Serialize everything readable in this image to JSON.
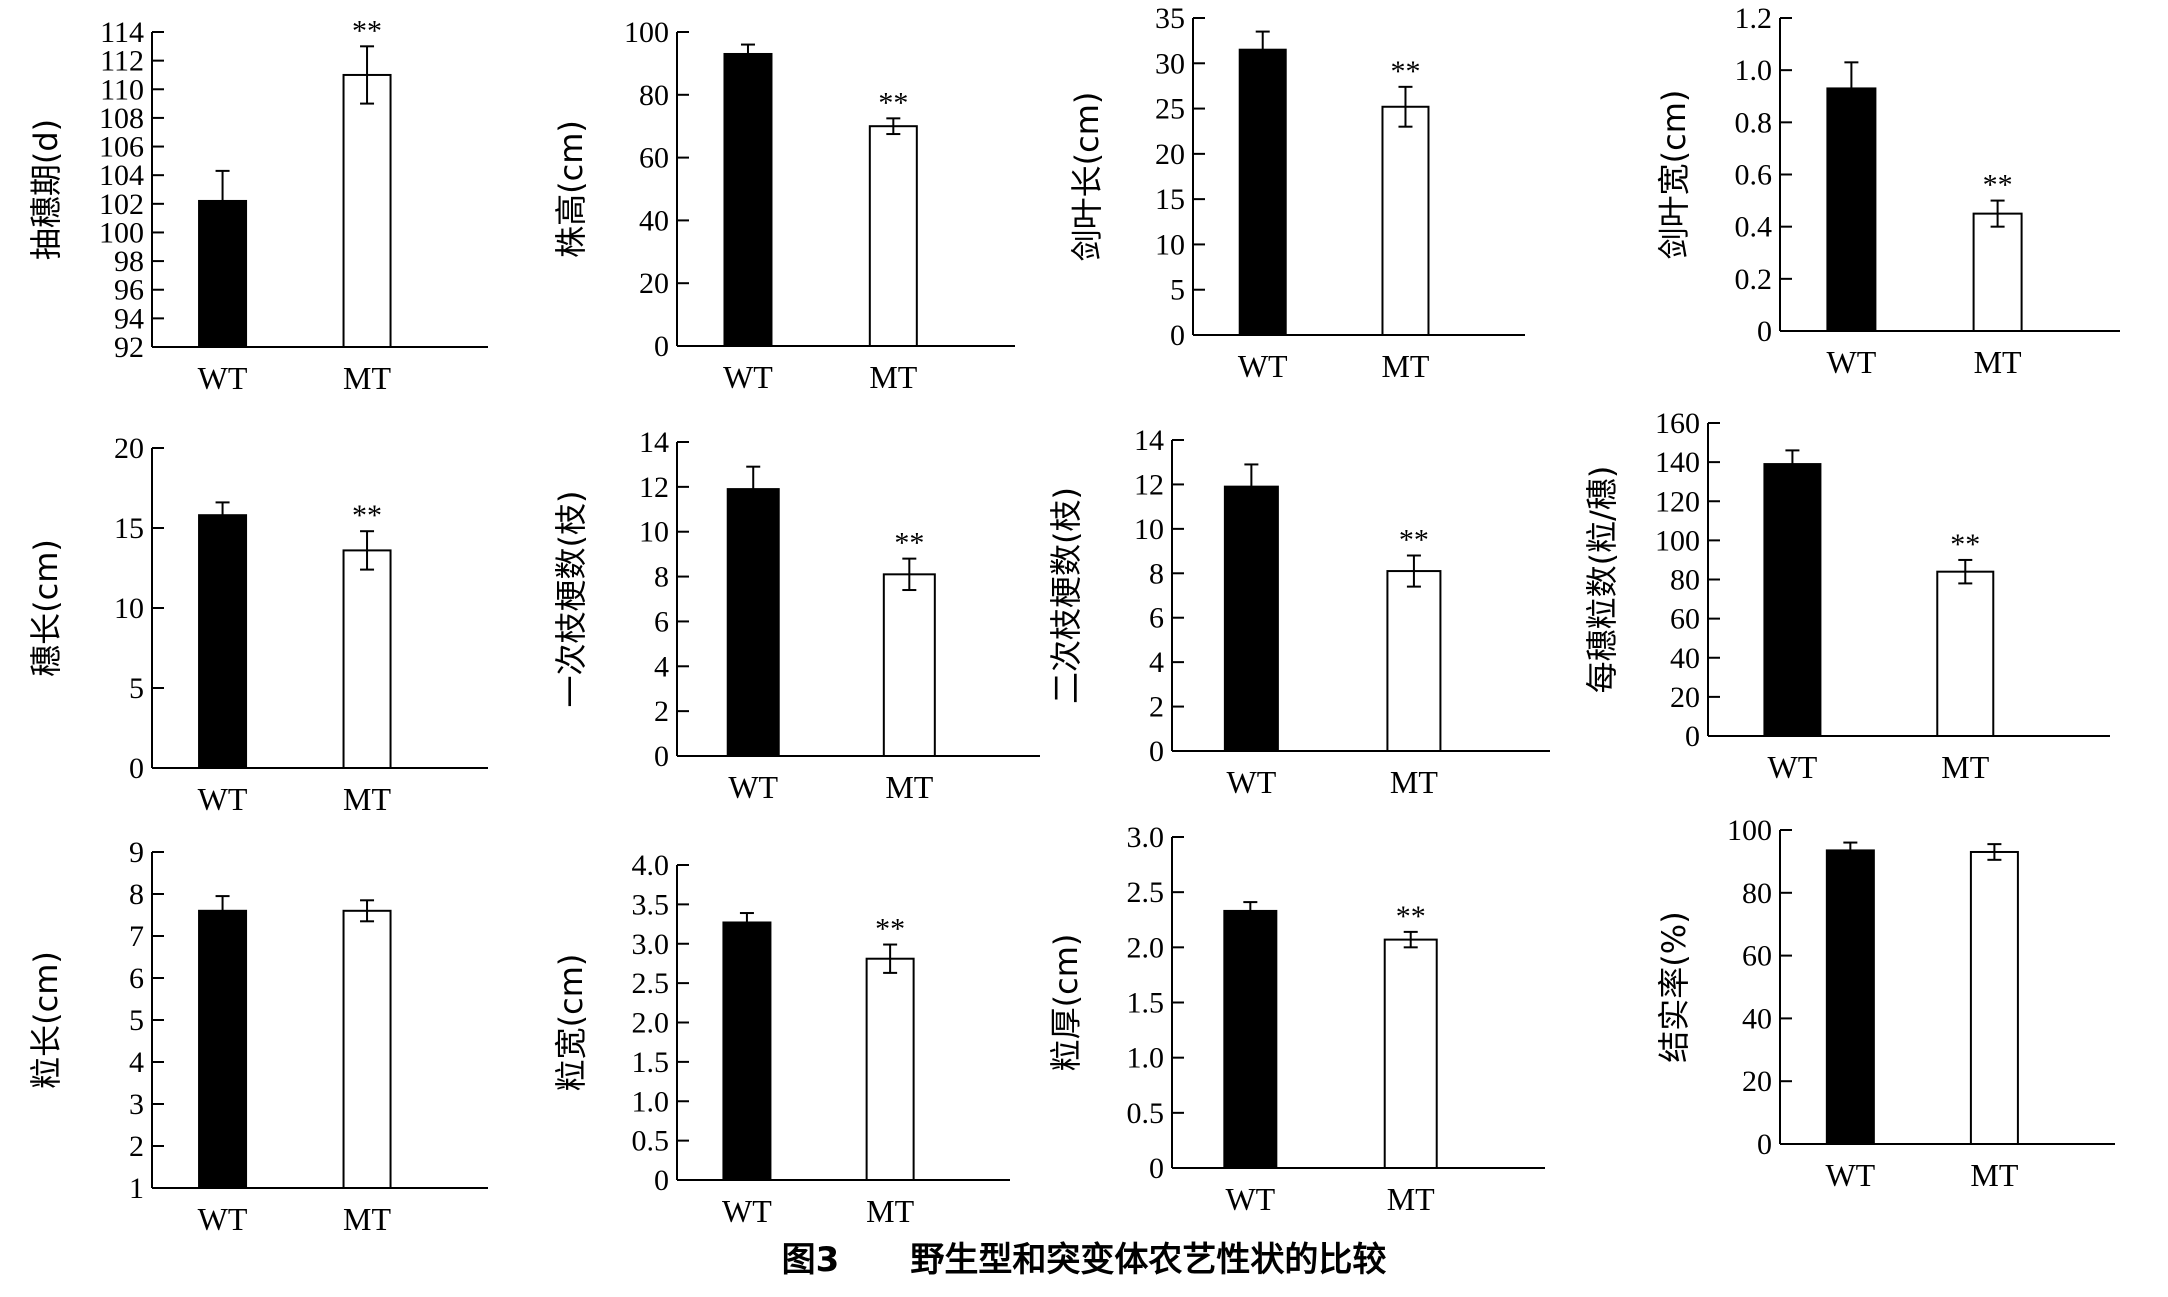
{
  "figure_caption": {
    "label": "图3",
    "text": "野生型和突变体农艺性状的比较"
  },
  "colors": {
    "wt": "#000000",
    "mt": "#ffffff",
    "axis": "#000000"
  },
  "chart_data": [
    {
      "type": "bar",
      "categories": [
        "WT",
        "MT"
      ],
      "ylabel": "抽穗期(d)",
      "values": [
        102.2,
        111.0
      ],
      "errors": [
        2.1,
        2.0
      ],
      "significance": [
        "",
        "**"
      ],
      "ylim": [
        92,
        114
      ],
      "yticks": [
        92,
        94,
        96,
        98,
        100,
        102,
        104,
        106,
        108,
        110,
        112,
        114
      ],
      "ytick_labels": [
        "92",
        "94",
        "96",
        "98",
        "100",
        "102",
        "104",
        "106",
        "108",
        "110",
        "112",
        "114"
      ]
    },
    {
      "type": "bar",
      "categories": [
        "WT",
        "MT"
      ],
      "ylabel": "株高(cm)",
      "values": [
        93,
        70
      ],
      "errors": [
        3,
        2.5
      ],
      "significance": [
        "",
        "**"
      ],
      "ylim": [
        0,
        100
      ],
      "yticks": [
        0,
        20,
        40,
        60,
        80,
        100
      ],
      "ytick_labels": [
        "0",
        "20",
        "40",
        "60",
        "80",
        "100"
      ]
    },
    {
      "type": "bar",
      "categories": [
        "WT",
        "MT"
      ],
      "ylabel": "剑叶长(cm)",
      "values": [
        31.5,
        25.2
      ],
      "errors": [
        2.0,
        2.2
      ],
      "significance": [
        "",
        "**"
      ],
      "ylim": [
        0,
        35
      ],
      "yticks": [
        0,
        5,
        10,
        15,
        20,
        25,
        30,
        35
      ],
      "ytick_labels": [
        "0",
        "5",
        "10",
        "15",
        "20",
        "25",
        "30",
        "35"
      ]
    },
    {
      "type": "bar",
      "categories": [
        "WT",
        "MT"
      ],
      "ylabel": "剑叶宽(cm)",
      "values": [
        0.93,
        0.45
      ],
      "errors": [
        0.1,
        0.05
      ],
      "significance": [
        "",
        "**"
      ],
      "ylim": [
        0,
        1.2
      ],
      "yticks": [
        0,
        0.2,
        0.4,
        0.6,
        0.8,
        1.0,
        1.2
      ],
      "ytick_labels": [
        "0",
        "0.2",
        "0.4",
        "0.6",
        "0.8",
        "1.0",
        "1.2"
      ]
    },
    {
      "type": "bar",
      "categories": [
        "WT",
        "MT"
      ],
      "ylabel": "穗长(cm)",
      "values": [
        15.8,
        13.6
      ],
      "errors": [
        0.8,
        1.2
      ],
      "significance": [
        "",
        "**"
      ],
      "ylim": [
        0,
        20
      ],
      "yticks": [
        0,
        5,
        10,
        15,
        20
      ],
      "ytick_labels": [
        "0",
        "5",
        "10",
        "15",
        "20"
      ]
    },
    {
      "type": "bar",
      "categories": [
        "WT",
        "MT"
      ],
      "ylabel": "一次枝梗数(枝)",
      "values": [
        11.9,
        8.1
      ],
      "errors": [
        1.0,
        0.7
      ],
      "significance": [
        "",
        "**"
      ],
      "ylim": [
        0,
        14
      ],
      "yticks": [
        0,
        2,
        4,
        6,
        8,
        10,
        12,
        14
      ],
      "ytick_labels": [
        "0",
        "2",
        "4",
        "6",
        "8",
        "10",
        "12",
        "14"
      ]
    },
    {
      "type": "bar",
      "categories": [
        "WT",
        "MT"
      ],
      "ylabel": "二次枝梗数(枝)",
      "values": [
        11.9,
        8.1
      ],
      "errors": [
        1.0,
        0.7
      ],
      "significance": [
        "",
        "**"
      ],
      "ylim": [
        0,
        14
      ],
      "yticks": [
        0,
        2,
        4,
        6,
        8,
        10,
        12,
        14
      ],
      "ytick_labels": [
        "0",
        "2",
        "4",
        "6",
        "8",
        "10",
        "12",
        "14"
      ]
    },
    {
      "type": "bar",
      "categories": [
        "WT",
        "MT"
      ],
      "ylabel": "每穗粒数(粒/穗)",
      "values": [
        139,
        84
      ],
      "errors": [
        7,
        6
      ],
      "significance": [
        "",
        "**"
      ],
      "ylim": [
        0,
        160
      ],
      "yticks": [
        0,
        20,
        40,
        60,
        80,
        100,
        120,
        140,
        160
      ],
      "ytick_labels": [
        "0",
        "20",
        "40",
        "60",
        "80",
        "100",
        "120",
        "140",
        "160"
      ]
    },
    {
      "type": "bar",
      "categories": [
        "WT",
        "MT"
      ],
      "ylabel": "粒长(cm)",
      "values": [
        7.6,
        7.6
      ],
      "errors": [
        0.35,
        0.25
      ],
      "significance": [
        "",
        ""
      ],
      "ylim": [
        1,
        9
      ],
      "yticks": [
        1,
        2,
        3,
        4,
        5,
        6,
        7,
        8,
        9
      ],
      "ytick_labels": [
        "1",
        "2",
        "3",
        "4",
        "5",
        "6",
        "7",
        "8",
        "9"
      ]
    },
    {
      "type": "bar",
      "categories": [
        "WT",
        "MT"
      ],
      "ylabel": "粒宽(cm)",
      "values": [
        3.27,
        2.81
      ],
      "errors": [
        0.12,
        0.18
      ],
      "significance": [
        "",
        "**"
      ],
      "ylim": [
        0,
        4.0
      ],
      "yticks": [
        0,
        0.5,
        1.0,
        1.5,
        2.0,
        2.5,
        3.0,
        3.5,
        4.0
      ],
      "ytick_labels": [
        "0",
        "0.5",
        "1.0",
        "1.5",
        "2.0",
        "2.5",
        "3.0",
        "3.5",
        "4.0"
      ]
    },
    {
      "type": "bar",
      "categories": [
        "WT",
        "MT"
      ],
      "ylabel": "粒厚(cm)",
      "values": [
        2.33,
        2.07
      ],
      "errors": [
        0.08,
        0.07
      ],
      "significance": [
        "",
        "**"
      ],
      "ylim": [
        0,
        3.0
      ],
      "yticks": [
        0,
        0.5,
        1.0,
        1.5,
        2.0,
        2.5,
        3.0
      ],
      "ytick_labels": [
        "0",
        "0.5",
        "1.0",
        "1.5",
        "2.0",
        "2.5",
        "3.0"
      ]
    },
    {
      "type": "bar",
      "categories": [
        "WT",
        "MT"
      ],
      "ylabel": "结实率(%)",
      "values": [
        93.5,
        93.0
      ],
      "errors": [
        2.5,
        2.5
      ],
      "significance": [
        "",
        ""
      ],
      "ylim": [
        0,
        100
      ],
      "yticks": [
        0,
        20,
        40,
        60,
        80,
        100
      ],
      "ytick_labels": [
        "0",
        "20",
        "40",
        "60",
        "80",
        "100"
      ]
    }
  ]
}
